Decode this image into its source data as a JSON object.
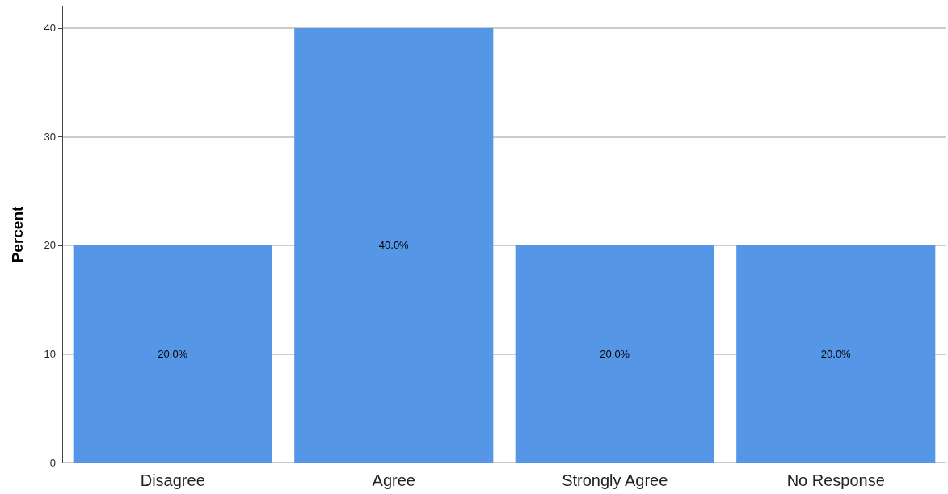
{
  "chart_data": {
    "type": "bar",
    "ylabel": "Percent",
    "categories": [
      "Disagree",
      "Agree",
      "Strongly Agree",
      "No Response"
    ],
    "values": [
      20,
      40,
      20,
      20
    ],
    "value_labels": [
      "20.0%",
      "40.0%",
      "20.0%",
      "20.0%"
    ],
    "color": "#5596e6",
    "ylim": [
      0,
      42
    ],
    "yticks": [
      0,
      10,
      20,
      30,
      40
    ],
    "grid": "y"
  }
}
